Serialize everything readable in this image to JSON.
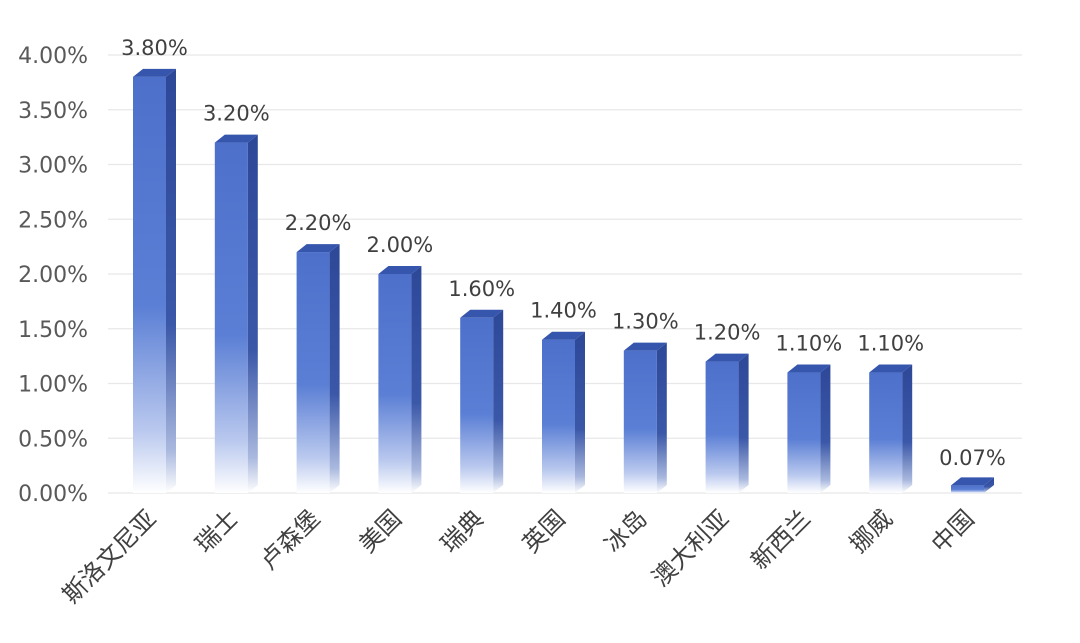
{
  "chart_data": {
    "type": "bar",
    "categories": [
      "斯洛文尼亚",
      "瑞士",
      "卢森堡",
      "美国",
      "瑞典",
      "英国",
      "冰岛",
      "澳大利亚",
      "新西兰",
      "挪威",
      "中国"
    ],
    "values": [
      3.8,
      3.2,
      2.2,
      2.0,
      1.6,
      1.4,
      1.3,
      1.2,
      1.1,
      1.1,
      0.07
    ],
    "value_labels": [
      "3.80%",
      "3.20%",
      "2.20%",
      "2.00%",
      "1.60%",
      "1.40%",
      "1.30%",
      "1.20%",
      "1.10%",
      "1.10%",
      "0.07%"
    ],
    "yticks": [
      "0.00%",
      "0.50%",
      "1.00%",
      "1.50%",
      "2.00%",
      "2.50%",
      "3.00%",
      "3.50%",
      "4.00%"
    ],
    "ylim": [
      0,
      4.0
    ],
    "grid": true,
    "legend": "none",
    "colors": {
      "bar_top": "#4f73cc",
      "bar_mid": "#5a7fd4",
      "bar_side": "#2f4a99",
      "bar_cap": "#3656ad",
      "fade": "#ffffff"
    }
  }
}
